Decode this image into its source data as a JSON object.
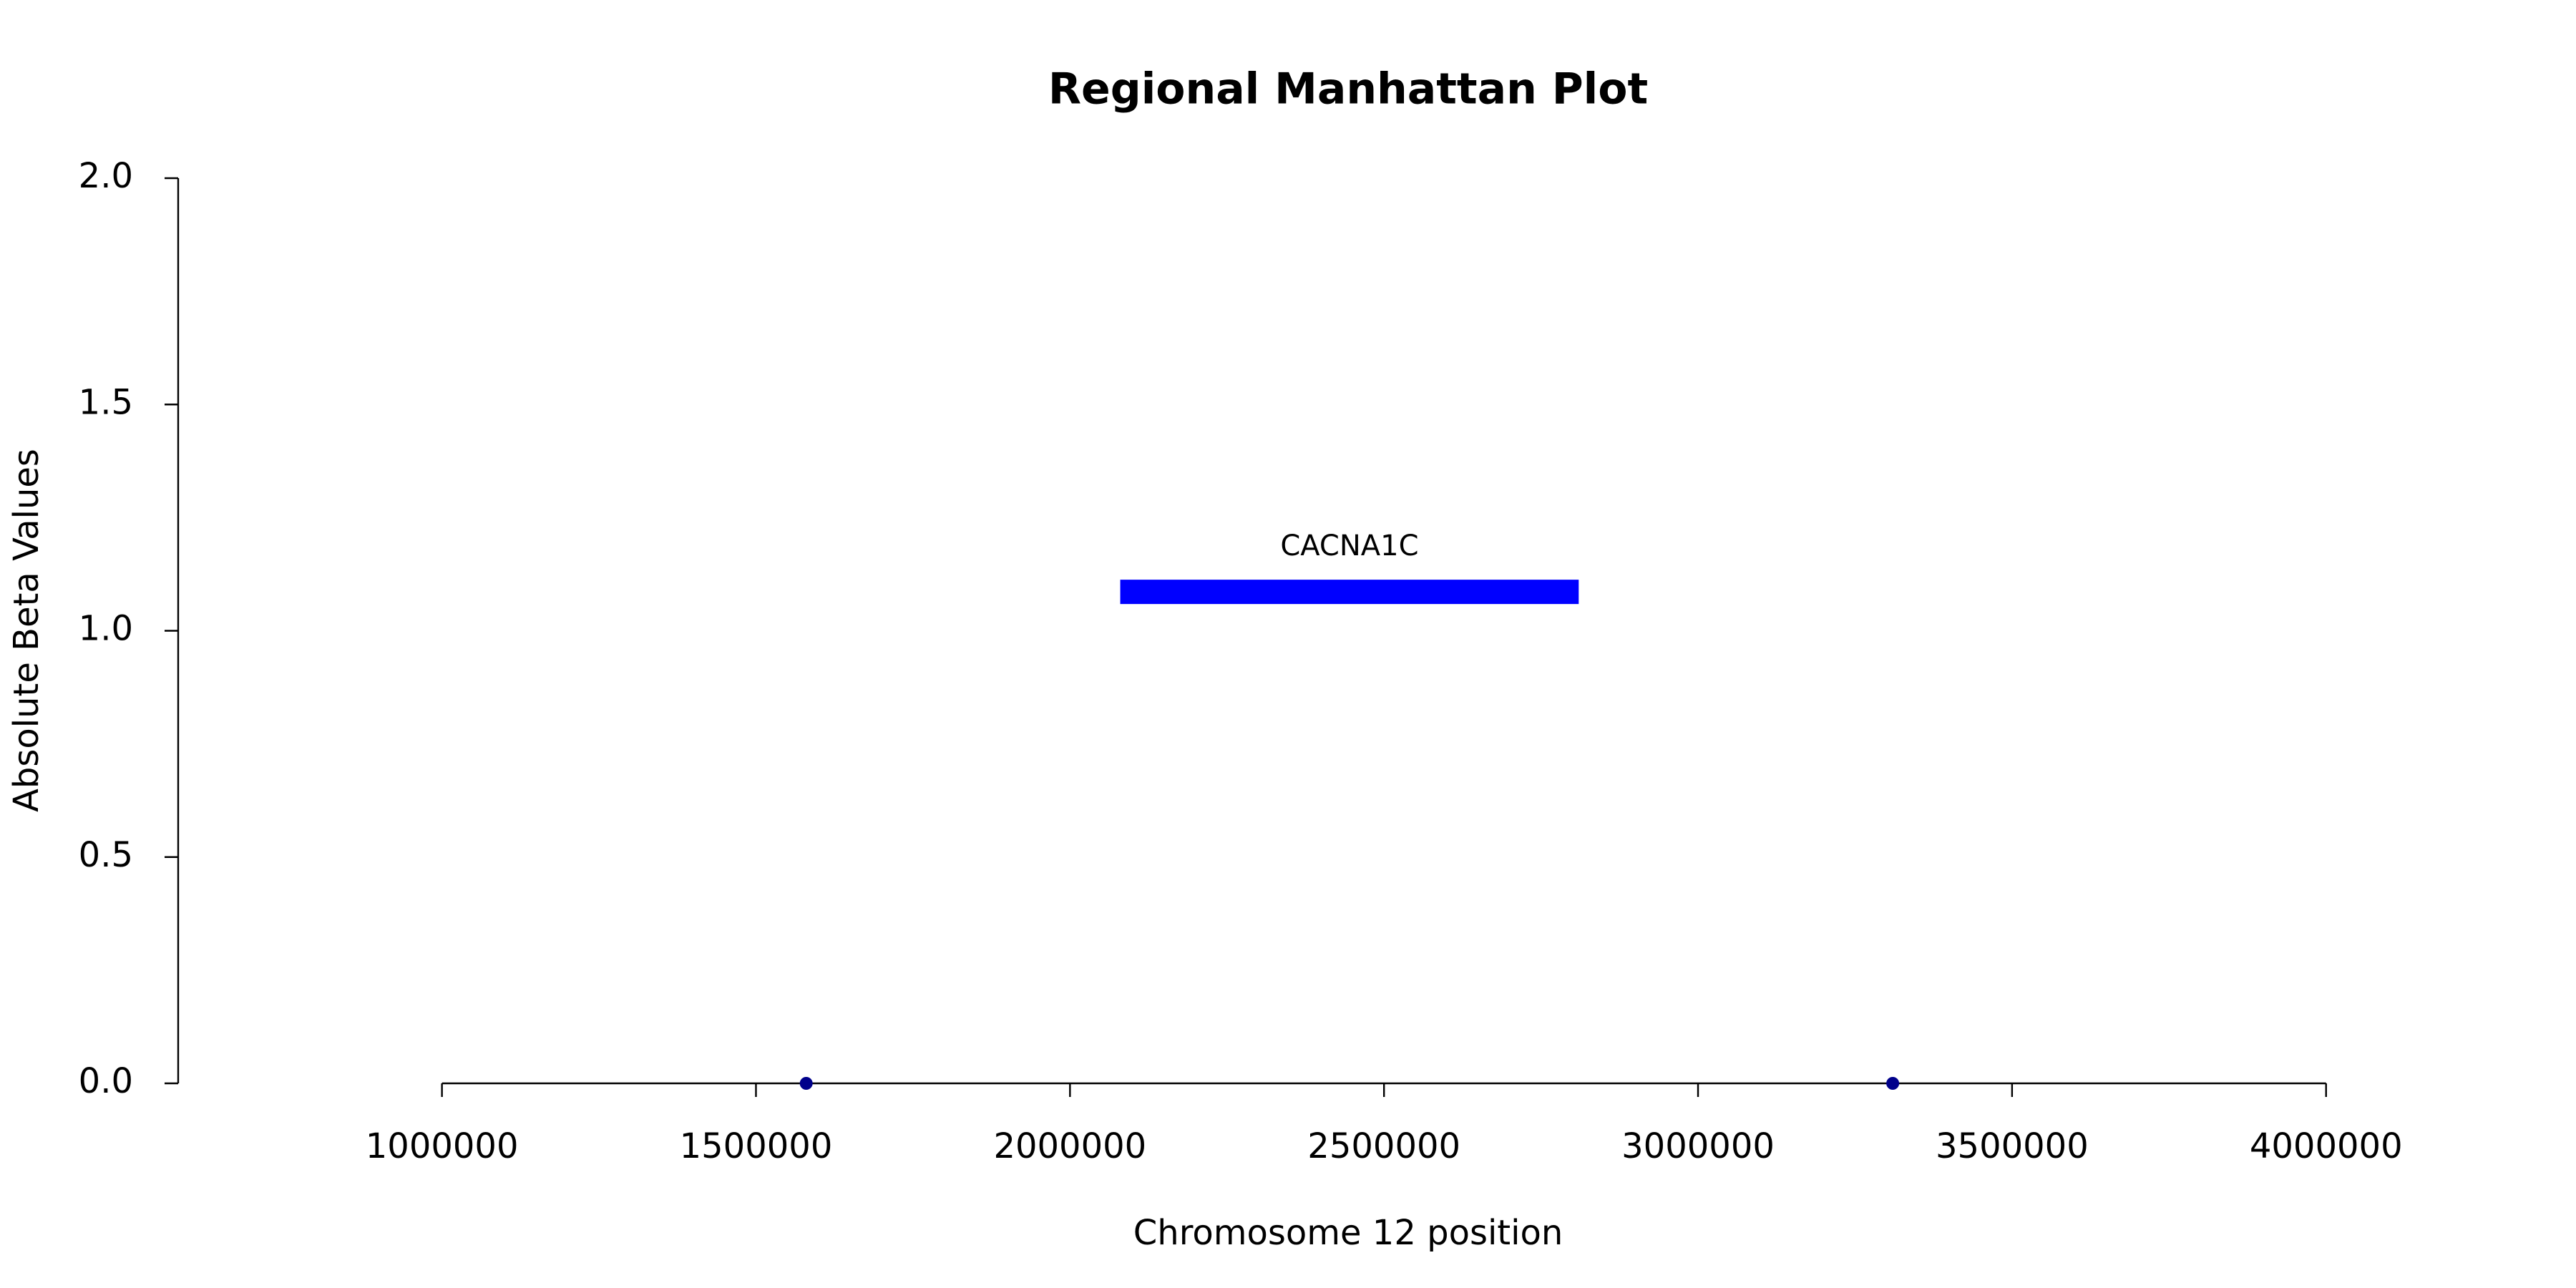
{
  "chart_data": {
    "type": "scatter",
    "title": "Regional Manhattan Plot",
    "x_label": "Chromosome 12 position",
    "y_label": "Absolute Beta Values",
    "series": [
      {
        "color": "#00008b",
        "x": [
          1580000,
          3310000
        ],
        "values": [
          0,
          0
        ]
      }
    ],
    "annotations": [
      {
        "label": "CACNA1C",
        "start": 2080000,
        "end": 2810000,
        "y": 1.086,
        "color": "#0000ff"
      }
    ],
    "xlim": [
      580000,
      4230000
    ],
    "ylim": [
      0,
      2
    ],
    "xticks": [
      1000000,
      1500000,
      2000000,
      2500000,
      3000000,
      3500000,
      4000000
    ],
    "yticks": [
      {
        "value": 0,
        "label": "0.0"
      },
      {
        "value": 0.5,
        "label": "0.5"
      },
      {
        "value": 1,
        "label": "1.0"
      },
      {
        "value": 1.5,
        "label": "1.5"
      },
      {
        "value": 2,
        "label": "2.0"
      }
    ]
  }
}
